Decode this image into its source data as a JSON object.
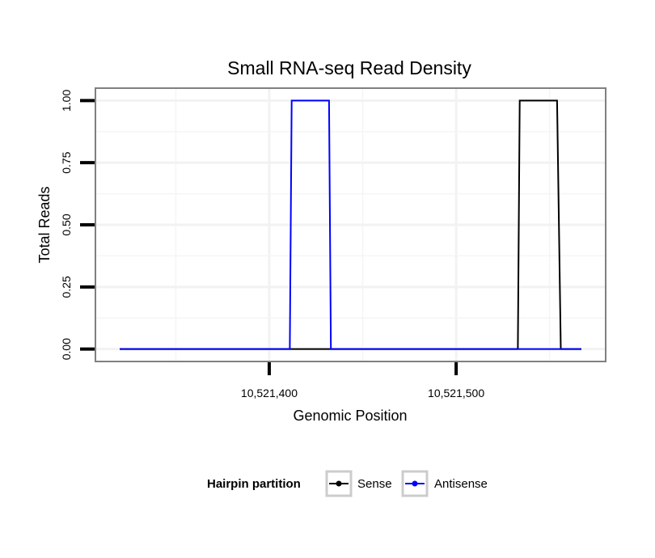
{
  "chart_data": {
    "type": "line",
    "title": "Small RNA-seq Read Density",
    "xlabel": "Genomic Position",
    "ylabel": "Total Reads",
    "xlim": [
      10521307,
      10521580
    ],
    "ylim": [
      -0.05,
      1.05
    ],
    "x_ticks": [
      {
        "value": 10521400,
        "label": "10,521,400"
      },
      {
        "value": 10521500,
        "label": "10,521,500"
      }
    ],
    "y_ticks": [
      {
        "value": 0,
        "label": "0.00"
      },
      {
        "value": 0.25,
        "label": "0.25"
      },
      {
        "value": 0.5,
        "label": "0.50"
      },
      {
        "value": 0.75,
        "label": "0.75"
      },
      {
        "value": 1,
        "label": "1.00"
      }
    ],
    "grid": true,
    "legend": {
      "title": "Hairpin partition",
      "position": "bottom"
    },
    "series": [
      {
        "name": "Sense",
        "color": "#000000",
        "x": [
          10521320,
          10521533,
          10521534,
          10521554,
          10521556,
          10521567
        ],
        "y": [
          0,
          0,
          1,
          1,
          0,
          0
        ]
      },
      {
        "name": "Antisense",
        "color": "#0000ff",
        "x": [
          10521320,
          10521411,
          10521412,
          10521432,
          10521433,
          10521567
        ],
        "y": [
          0,
          0,
          1,
          1,
          0,
          0
        ]
      }
    ]
  }
}
